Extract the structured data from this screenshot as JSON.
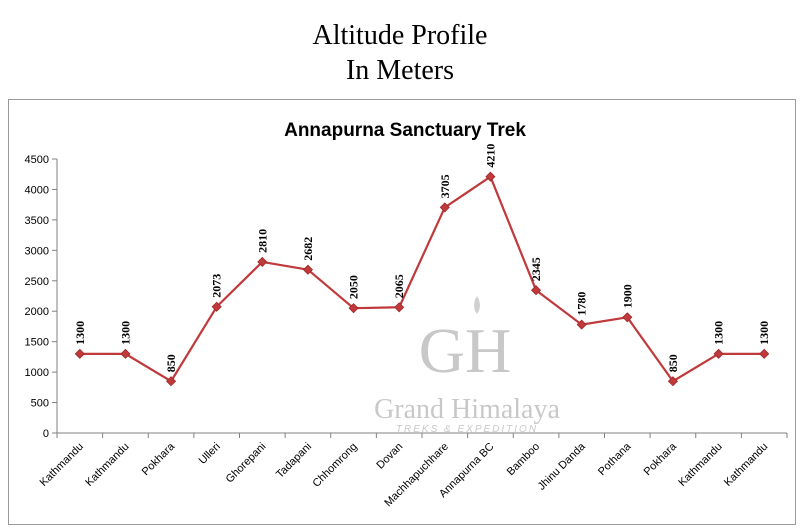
{
  "page": {
    "title_line1": "Altitude Profile",
    "title_line2": "In Meters"
  },
  "watermark": {
    "monogram": "GH",
    "name": "Grand Himalaya",
    "tagline": "TREKS & EXPEDITION"
  },
  "colors": {
    "line": "#c0393b",
    "marker": "#c0393b",
    "axis": "#808080"
  },
  "chart_data": {
    "type": "line",
    "title": "Annapurna Sanctuary Trek",
    "xlabel": "",
    "ylabel": "",
    "ylim": [
      0,
      4500
    ],
    "yticks": [
      0,
      500,
      1000,
      1500,
      2000,
      2500,
      3000,
      3500,
      4000,
      4500
    ],
    "grid": false,
    "legend": "none",
    "categories": [
      "Kathmandu",
      "Kathmandu",
      "Pokhara",
      "Ulleri",
      "Ghorepani",
      "Tadapani",
      "Chhomrong",
      "Dovan",
      "Machhapuchhare",
      "Annapurna BC",
      "Bamboo",
      "Jhinu Danda",
      "Pothana",
      "Pokhara",
      "Kathmandu",
      "Kathmandu"
    ],
    "series": [
      {
        "values": [
          1300,
          1300,
          850,
          2073,
          2810,
          2682,
          2050,
          2065,
          3705,
          4210,
          2345,
          1780,
          1900,
          850,
          1300,
          1300
        ]
      }
    ]
  }
}
